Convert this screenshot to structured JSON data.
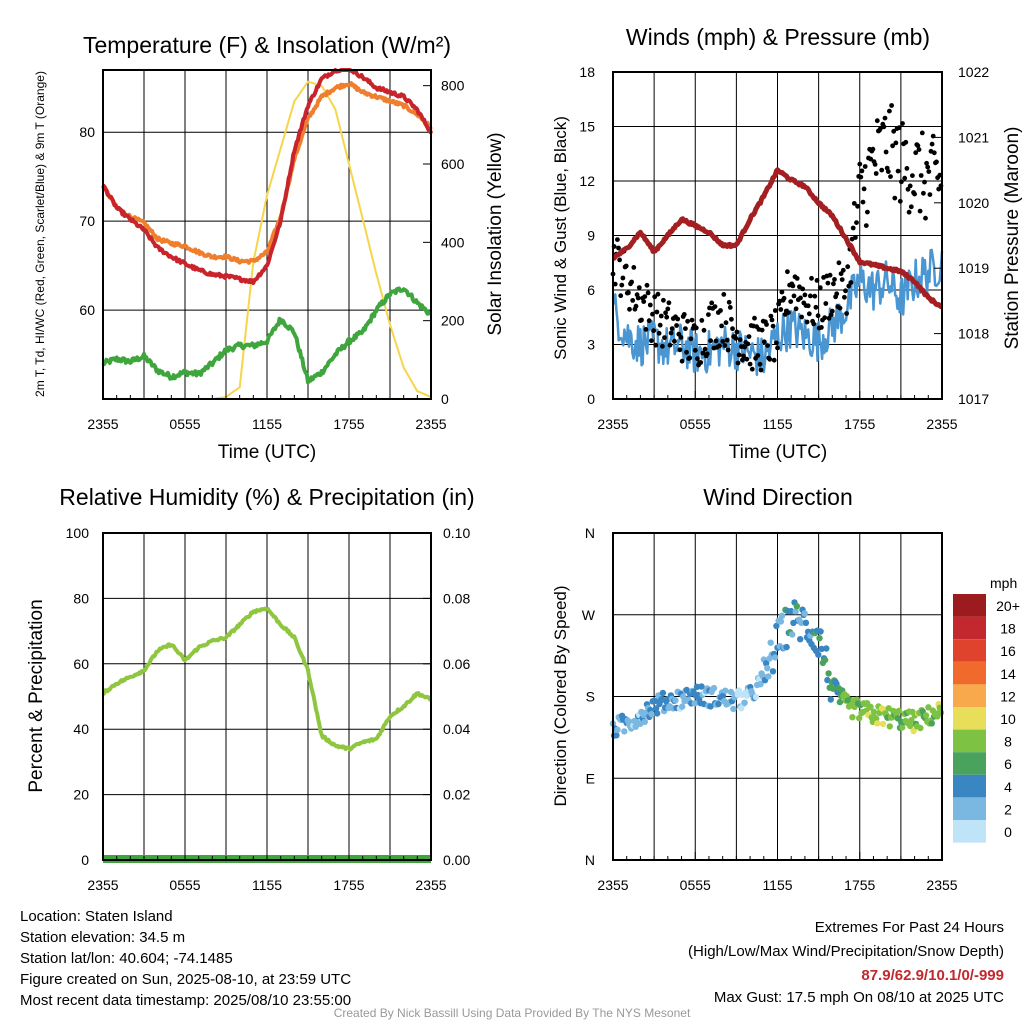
{
  "colors": {
    "temp_red": "#c8242b",
    "temp_orange": "#f07f2d",
    "dewpoint_green": "#3ea63d",
    "insolation_yellow": "#f7d54a",
    "wind_blue": "#4a96d2",
    "gust_black": "#000000",
    "pressure_maroon": "#a31f22",
    "rh_green": "#8ec63f",
    "precip_green": "#3ea63d",
    "extremes_red": "#c2282e",
    "credit_gray": "#999999"
  },
  "time_ticks": [
    "2355",
    "0555",
    "1155",
    "1755",
    "2355"
  ],
  "speed_colorbar": {
    "unit": "mph",
    "labels": [
      "20+",
      "18",
      "16",
      "14",
      "12",
      "10",
      "8",
      "6",
      "4",
      "2",
      "0"
    ],
    "colors": [
      "#9b1b1e",
      "#c2282e",
      "#e0432d",
      "#f06a2d",
      "#f8a94b",
      "#e8de5a",
      "#7dc243",
      "#49a35c",
      "#3a86c2",
      "#7ab8e2",
      "#bfe3f7"
    ]
  },
  "chart_data": [
    {
      "type": "line",
      "title": "Temperature (F) & Insolation (W/m²)",
      "xlabel": "Time (UTC)",
      "ylabel": "2m T, Td, HI/WC (Red, Green, Scarlet/Blue) & 9m T (Orange)",
      "ylabel_right": "Solar Insolation (Yellow)",
      "x_ticks": [
        "2355",
        "0555",
        "1155",
        "1755",
        "2355"
      ],
      "ylim": [
        50,
        87
      ],
      "y_ticks": [
        60,
        70,
        80
      ],
      "ylim_right": [
        0,
        840
      ],
      "y_ticks_right": [
        0,
        200,
        400,
        600,
        800
      ],
      "x_hours": [
        0,
        1,
        2,
        3,
        4,
        5,
        6,
        7,
        8,
        9,
        10,
        11,
        12,
        13,
        14,
        15,
        16,
        17,
        18,
        19,
        20,
        21,
        22,
        23,
        24
      ],
      "series": [
        {
          "name": "2m T",
          "color": "#c8242b",
          "values": [
            74,
            71.5,
            70.2,
            69,
            67,
            66,
            65.2,
            64.5,
            64,
            63.8,
            63.5,
            63.2,
            65,
            70,
            78,
            83,
            86,
            87,
            87.2,
            86.2,
            85,
            84.5,
            84,
            82.5,
            80
          ]
        },
        {
          "name": "9m T",
          "color": "#f07f2d",
          "values": [
            74,
            71.5,
            70.5,
            69.8,
            68,
            67.5,
            67.2,
            66.5,
            66,
            66,
            65.5,
            65.5,
            66.5,
            70.5,
            77,
            81.5,
            84,
            85,
            85.5,
            84.5,
            84,
            83.5,
            83,
            82,
            80.5
          ]
        },
        {
          "name": "Td",
          "color": "#3ea63d",
          "values": [
            54,
            54.5,
            54.2,
            54.8,
            53.2,
            52.5,
            53,
            52.8,
            54,
            55.5,
            56,
            56,
            56.5,
            59,
            57.5,
            52,
            53,
            55,
            56.5,
            57.5,
            60,
            61.8,
            62.5,
            60.8,
            59.5
          ]
        },
        {
          "name": "Solar Insolation",
          "color": "#f7d54a",
          "axis": "right",
          "values": [
            0,
            0,
            0,
            0,
            0,
            0,
            0,
            0,
            0,
            5,
            30,
            350,
            520,
            640,
            760,
            810,
            800,
            740,
            600,
            460,
            320,
            190,
            80,
            20,
            5
          ]
        }
      ]
    },
    {
      "type": "line",
      "title": "Winds (mph) & Pressure (mb)",
      "xlabel": "Time (UTC)",
      "ylabel": "Sonic Wind & Gust (Blue, Black)",
      "ylabel_right": "Station Pressure (Maroon)",
      "x_ticks": [
        "2355",
        "0555",
        "1155",
        "1755",
        "2355"
      ],
      "ylim": [
        0,
        18
      ],
      "y_ticks": [
        0,
        3,
        6,
        9,
        12,
        15,
        18
      ],
      "ylim_right": [
        1017,
        1022
      ],
      "y_ticks_right": [
        1017,
        1018,
        1019,
        1020,
        1021,
        1022
      ],
      "x_hours": [
        0,
        1,
        2,
        3,
        4,
        5,
        6,
        7,
        8,
        9,
        10,
        11,
        12,
        13,
        14,
        15,
        16,
        17,
        18,
        19,
        20,
        21,
        22,
        23,
        24
      ],
      "series": [
        {
          "name": "Sonic Wind",
          "color": "#4a96d2",
          "values": [
            5,
            3.5,
            3,
            3.2,
            2.8,
            3,
            2.5,
            2.6,
            3,
            2.8,
            2.5,
            2.2,
            3.5,
            4,
            3.5,
            3.2,
            4,
            5,
            6.5,
            6,
            6.5,
            5.5,
            6.5,
            7,
            7.5
          ]
        },
        {
          "name": "Gust",
          "color": "#000000",
          "values": [
            8,
            6.5,
            5.5,
            4.5,
            4,
            3.5,
            3,
            4,
            4.5,
            3.5,
            3,
            3,
            3.5,
            6.5,
            5.5,
            5,
            6,
            6,
            11,
            13,
            14,
            13,
            12.5,
            12,
            12
          ]
        },
        {
          "name": "Station Pressure",
          "color": "#a31f22",
          "axis": "right",
          "values": [
            1019.15,
            1019.3,
            1019.55,
            1019.25,
            1019.5,
            1019.75,
            1019.65,
            1019.55,
            1019.35,
            1019.35,
            1019.75,
            1020.1,
            1020.5,
            1020.35,
            1020.25,
            1020.0,
            1019.8,
            1019.45,
            1019.1,
            1019.05,
            1019.0,
            1018.95,
            1018.8,
            1018.55,
            1018.4
          ]
        }
      ]
    },
    {
      "type": "line",
      "title": "Relative Humidity (%) & Precipitation (in)",
      "xlabel": "",
      "ylabel": "Percent & Precipitation",
      "x_ticks": [
        "2355",
        "0555",
        "1155",
        "1755",
        "2355"
      ],
      "ylim": [
        0,
        100
      ],
      "y_ticks": [
        0,
        20,
        40,
        60,
        80,
        100
      ],
      "ylim_right": [
        0,
        0.1
      ],
      "y_ticks_right": [
        "0.00",
        "0.02",
        "0.04",
        "0.06",
        "0.08",
        "0.10"
      ],
      "x_hours": [
        0,
        1,
        2,
        3,
        4,
        5,
        6,
        7,
        8,
        9,
        10,
        11,
        12,
        13,
        14,
        15,
        16,
        17,
        18,
        19,
        20,
        21,
        22,
        23,
        24
      ],
      "series": [
        {
          "name": "Relative Humidity",
          "color": "#8ec63f",
          "values": [
            51,
            54,
            56,
            58,
            64,
            66,
            61,
            65,
            67,
            68,
            72,
            76,
            77,
            72,
            68,
            58,
            38,
            35,
            34,
            36,
            37,
            44,
            47,
            51,
            49
          ]
        },
        {
          "name": "Precipitation",
          "color": "#3ea63d",
          "axis": "right",
          "values": [
            0,
            0,
            0,
            0,
            0,
            0,
            0,
            0,
            0,
            0,
            0,
            0,
            0,
            0,
            0,
            0,
            0,
            0,
            0,
            0,
            0,
            0,
            0,
            0,
            0
          ]
        }
      ]
    },
    {
      "type": "scatter",
      "title": "Wind Direction",
      "ylabel": "Direction (Colored By Speed)",
      "x_ticks": [
        "2355",
        "0555",
        "1155",
        "1755",
        "2355"
      ],
      "y_ticks": [
        "N",
        "E",
        "S",
        "W",
        "N"
      ],
      "ylim": [
        0,
        360
      ],
      "colorbar_unit": "mph",
      "direction_deg_by_hour": [
        145,
        150,
        160,
        170,
        175,
        178,
        182,
        180,
        178,
        175,
        180,
        200,
        240,
        265,
        260,
        245,
        190,
        170,
        165,
        160,
        158,
        155,
        152,
        158,
        165
      ],
      "speed_mph_by_hour": [
        3,
        2,
        2,
        3,
        3,
        2,
        3,
        2,
        3,
        2,
        2,
        2,
        3,
        4,
        3,
        4,
        5,
        7,
        8,
        9,
        8,
        7,
        8,
        7,
        8
      ]
    }
  ],
  "info": {
    "location": "Location: Staten Island",
    "elevation": "Station elevation: 34.5 m",
    "latlon": "Station lat/lon: 40.604; -74.1485",
    "created": "Figure created on Sun, 2025-08-10, at 23:59 UTC",
    "recent": "Most recent data timestamp: 2025/08/10 23:55:00"
  },
  "extremes": {
    "title": "Extremes For Past 24 Hours",
    "subtitle": "(High/Low/Max Wind/Precipitation/Snow Depth)",
    "values": "87.9/62.9/10.1/0/-999",
    "max_gust": "Max Gust: 17.5 mph On 08/10 at 2025 UTC"
  },
  "credit": "Created By Nick Bassill Using Data Provided By The NYS Mesonet"
}
